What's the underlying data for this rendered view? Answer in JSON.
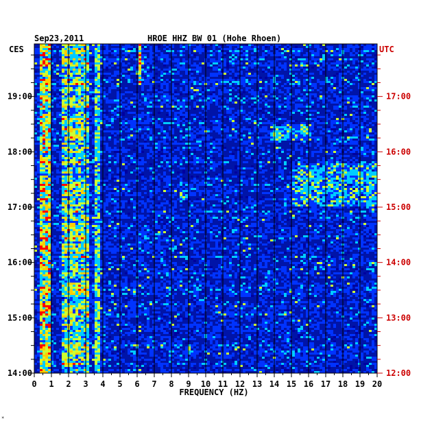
{
  "chart_data": {
    "type": "heatmap",
    "title_date": "Sep23,2011",
    "title_station": "HROE HHZ BW 01 (Hohe Rhoen)",
    "left_tz": "CES",
    "right_tz": "UTC",
    "xlabel": "FREQUENCY (HZ)",
    "x_ticks": [
      "0",
      "1",
      "2",
      "3",
      "4",
      "5",
      "6",
      "7",
      "8",
      "9",
      "10",
      "11",
      "12",
      "13",
      "14",
      "15",
      "16",
      "17",
      "18",
      "19",
      "20"
    ],
    "xlim": [
      0,
      20
    ],
    "left_ticks": [
      "14:00",
      "15:00",
      "16:00",
      "17:00",
      "18:00",
      "19:00"
    ],
    "right_ticks": [
      "12:00",
      "13:00",
      "14:00",
      "15:00",
      "16:00",
      "17:00"
    ],
    "ylim_hours_ces": [
      14.0,
      19.95
    ],
    "colormap": [
      "#0000a0",
      "#0033ff",
      "#00ccff",
      "#ccff33",
      "#ffcc00",
      "#ff0000"
    ],
    "background_color": "#0014a8",
    "features": [
      {
        "type": "band",
        "freq": [
          0.3,
          1.0
        ],
        "intensity": "high"
      },
      {
        "type": "band",
        "freq": [
          1.6,
          3.2
        ],
        "intensity": "medium-high"
      },
      {
        "type": "line",
        "freq": 3.7,
        "intensity": "medium"
      },
      {
        "type": "line",
        "freq": 6.2,
        "time": [
          19.2,
          19.95
        ],
        "intensity": "high"
      },
      {
        "type": "patch",
        "freq": [
          13.8,
          16.2
        ],
        "time": [
          18.2,
          18.5
        ],
        "intensity": "medium"
      },
      {
        "type": "patch",
        "freq": [
          15.0,
          20.0
        ],
        "time": [
          17.0,
          17.8
        ],
        "intensity": "medium"
      },
      {
        "type": "patch",
        "freq": [
          8.5,
          9.0
        ],
        "time": [
          17.1,
          17.3
        ],
        "intensity": "medium"
      }
    ]
  },
  "corner_mark": "*"
}
